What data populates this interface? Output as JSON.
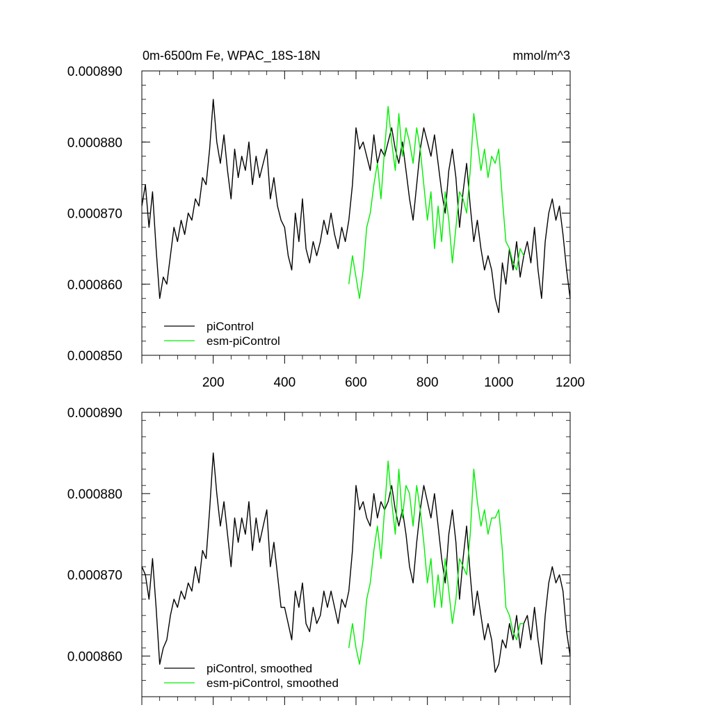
{
  "chart_data": [
    {
      "type": "line",
      "title": "0m-6500m Fe, WPAC_18S-18N",
      "units": "mmol/m^3",
      "xlim": [
        0,
        1200
      ],
      "ylim": [
        0.00085,
        0.00089
      ],
      "yticks": [
        0.00085,
        0.00086,
        0.00087,
        0.00088,
        0.00089
      ],
      "ytick_labels": [
        "0.000850",
        "0.000860",
        "0.000870",
        "0.000880",
        "0.000890"
      ],
      "xticks": [
        200,
        400,
        600,
        800,
        1000,
        1200
      ],
      "xtick_labels": [
        "200",
        "400",
        "600",
        "800",
        "1000",
        "1200"
      ],
      "legend_position": "bottom-left",
      "series": [
        {
          "name": "piControl",
          "color": "#000000",
          "x": [
            0,
            10,
            20,
            30,
            40,
            50,
            60,
            70,
            80,
            90,
            100,
            110,
            120,
            130,
            140,
            150,
            160,
            170,
            180,
            190,
            200,
            210,
            220,
            230,
            240,
            250,
            260,
            270,
            280,
            290,
            300,
            310,
            320,
            330,
            340,
            350,
            360,
            370,
            380,
            390,
            400,
            410,
            420,
            430,
            440,
            450,
            460,
            470,
            480,
            490,
            500,
            510,
            520,
            530,
            540,
            550,
            560,
            570,
            580,
            590,
            600,
            610,
            620,
            630,
            640,
            650,
            660,
            670,
            680,
            690,
            700,
            710,
            720,
            730,
            740,
            750,
            760,
            770,
            780,
            790,
            800,
            810,
            820,
            830,
            840,
            850,
            860,
            870,
            880,
            890,
            900,
            910,
            920,
            930,
            940,
            950,
            960,
            970,
            980,
            990,
            1000,
            1010,
            1020,
            1030,
            1040,
            1050,
            1060,
            1070,
            1080,
            1090,
            1100,
            1110,
            1120,
            1130,
            1140,
            1150,
            1160,
            1170,
            1180,
            1190,
            1200
          ],
          "values": [
            0.000871,
            0.000874,
            0.000868,
            0.000873,
            0.000865,
            0.000858,
            0.000861,
            0.00086,
            0.000864,
            0.000868,
            0.000866,
            0.000869,
            0.000867,
            0.00087,
            0.000869,
            0.000872,
            0.000871,
            0.000875,
            0.000874,
            0.000879,
            0.000886,
            0.00088,
            0.000877,
            0.000881,
            0.000876,
            0.000872,
            0.000879,
            0.000875,
            0.000878,
            0.000876,
            0.00088,
            0.000874,
            0.000878,
            0.000875,
            0.000877,
            0.000879,
            0.000872,
            0.000875,
            0.000871,
            0.000869,
            0.000868,
            0.000864,
            0.000862,
            0.00087,
            0.000866,
            0.000872,
            0.000865,
            0.000863,
            0.000866,
            0.000864,
            0.000866,
            0.000869,
            0.000867,
            0.00087,
            0.000867,
            0.000865,
            0.000868,
            0.000866,
            0.000869,
            0.000874,
            0.000882,
            0.000879,
            0.00088,
            0.000878,
            0.000876,
            0.000881,
            0.000877,
            0.000879,
            0.000878,
            0.00088,
            0.000882,
            0.000879,
            0.000877,
            0.00088,
            0.000876,
            0.000872,
            0.000869,
            0.000874,
            0.000879,
            0.000882,
            0.00088,
            0.000878,
            0.000881,
            0.000877,
            0.000873,
            0.00087,
            0.000876,
            0.000879,
            0.000875,
            0.000868,
            0.000873,
            0.000877,
            0.000871,
            0.000866,
            0.000869,
            0.000865,
            0.000862,
            0.000864,
            0.000862,
            0.000858,
            0.000856,
            0.000863,
            0.00086,
            0.000865,
            0.000862,
            0.000866,
            0.000861,
            0.000864,
            0.000866,
            0.000863,
            0.000868,
            0.000862,
            0.000858,
            0.000866,
            0.00087,
            0.000872,
            0.000869,
            0.000871,
            0.000867,
            0.000862,
            0.000858
          ]
        },
        {
          "name": "esm-piControl",
          "color": "#00ee00",
          "x": [
            580,
            590,
            600,
            610,
            620,
            630,
            640,
            650,
            660,
            670,
            680,
            690,
            700,
            710,
            720,
            730,
            740,
            750,
            760,
            770,
            780,
            790,
            800,
            810,
            820,
            830,
            840,
            850,
            860,
            870,
            880,
            890,
            900,
            910,
            920,
            930,
            940,
            950,
            960,
            970,
            980,
            990,
            1000,
            1010,
            1020,
            1030,
            1040,
            1050,
            1060,
            1070
          ],
          "values": [
            0.00086,
            0.000864,
            0.000861,
            0.000858,
            0.000862,
            0.000868,
            0.00087,
            0.000874,
            0.000877,
            0.000872,
            0.000879,
            0.000885,
            0.00088,
            0.000876,
            0.000884,
            0.000878,
            0.000882,
            0.00088,
            0.000877,
            0.000882,
            0.000879,
            0.000874,
            0.000869,
            0.000873,
            0.000865,
            0.000871,
            0.000866,
            0.000873,
            0.000869,
            0.000863,
            0.000868,
            0.000873,
            0.000872,
            0.00087,
            0.000876,
            0.000884,
            0.00088,
            0.000876,
            0.000879,
            0.000875,
            0.000878,
            0.000877,
            0.000879,
            0.000872,
            0.000866,
            0.000865,
            0.000863,
            0.000862,
            0.000865,
            0.000864
          ]
        }
      ]
    },
    {
      "type": "line",
      "xlim": [
        0,
        1200
      ],
      "ylim": [
        0.000855,
        0.00089
      ],
      "yticks": [
        0.00086,
        0.00087,
        0.00088,
        0.00089
      ],
      "ytick_labels": [
        "0.000860",
        "0.000870",
        "0.000880",
        "0.000890"
      ],
      "xticks": [
        200,
        400,
        600,
        800,
        1000,
        1200
      ],
      "legend_position": "bottom-left",
      "series": [
        {
          "name": "piControl, smoothed",
          "color": "#000000",
          "x": [
            0,
            10,
            20,
            30,
            40,
            50,
            60,
            70,
            80,
            90,
            100,
            110,
            120,
            130,
            140,
            150,
            160,
            170,
            180,
            190,
            200,
            210,
            220,
            230,
            240,
            250,
            260,
            270,
            280,
            290,
            300,
            310,
            320,
            330,
            340,
            350,
            360,
            370,
            380,
            390,
            400,
            410,
            420,
            430,
            440,
            450,
            460,
            470,
            480,
            490,
            500,
            510,
            520,
            530,
            540,
            550,
            560,
            570,
            580,
            590,
            600,
            610,
            620,
            630,
            640,
            650,
            660,
            670,
            680,
            690,
            700,
            710,
            720,
            730,
            740,
            750,
            760,
            770,
            780,
            790,
            800,
            810,
            820,
            830,
            840,
            850,
            860,
            870,
            880,
            890,
            900,
            910,
            920,
            930,
            940,
            950,
            960,
            970,
            980,
            990,
            1000,
            1010,
            1020,
            1030,
            1040,
            1050,
            1060,
            1070,
            1080,
            1090,
            1100,
            1110,
            1120,
            1130,
            1140,
            1150,
            1160,
            1170,
            1180,
            1190,
            1200
          ],
          "values": [
            0.000871,
            0.00087,
            0.000867,
            0.000872,
            0.000866,
            0.000859,
            0.000861,
            0.000862,
            0.000865,
            0.000867,
            0.000866,
            0.000868,
            0.000867,
            0.000869,
            0.000868,
            0.000871,
            0.000869,
            0.000873,
            0.000872,
            0.000878,
            0.000885,
            0.00088,
            0.000876,
            0.000879,
            0.000875,
            0.000871,
            0.000877,
            0.000874,
            0.000877,
            0.000875,
            0.000879,
            0.000873,
            0.000877,
            0.000874,
            0.000876,
            0.000878,
            0.000871,
            0.000874,
            0.00087,
            0.000866,
            0.000866,
            0.000864,
            0.000862,
            0.000868,
            0.000866,
            0.000869,
            0.000864,
            0.000863,
            0.000866,
            0.000864,
            0.000865,
            0.000868,
            0.000866,
            0.000868,
            0.000866,
            0.000864,
            0.000867,
            0.000866,
            0.000868,
            0.000873,
            0.000881,
            0.000878,
            0.000879,
            0.000877,
            0.000876,
            0.00088,
            0.000877,
            0.000879,
            0.000878,
            0.000879,
            0.000881,
            0.000878,
            0.000876,
            0.000878,
            0.000875,
            0.000871,
            0.000869,
            0.000874,
            0.000878,
            0.000881,
            0.000879,
            0.000877,
            0.00088,
            0.000876,
            0.000872,
            0.000869,
            0.000875,
            0.000878,
            0.000874,
            0.000867,
            0.000872,
            0.000876,
            0.00087,
            0.000865,
            0.000868,
            0.000865,
            0.000862,
            0.000864,
            0.000862,
            0.000858,
            0.000859,
            0.000862,
            0.000861,
            0.000864,
            0.000862,
            0.000865,
            0.000861,
            0.000864,
            0.000865,
            0.000862,
            0.000866,
            0.000862,
            0.000859,
            0.000865,
            0.000869,
            0.000871,
            0.000869,
            0.00087,
            0.000868,
            0.000863,
            0.00086
          ]
        },
        {
          "name": "esm-piControl, smoothed",
          "color": "#00ee00",
          "x": [
            580,
            590,
            600,
            610,
            620,
            630,
            640,
            650,
            660,
            670,
            680,
            690,
            700,
            710,
            720,
            730,
            740,
            750,
            760,
            770,
            780,
            790,
            800,
            810,
            820,
            830,
            840,
            850,
            860,
            870,
            880,
            890,
            900,
            910,
            920,
            930,
            940,
            950,
            960,
            970,
            980,
            990,
            1000,
            1010,
            1020,
            1030,
            1040,
            1050,
            1060,
            1070
          ],
          "values": [
            0.000861,
            0.000864,
            0.000861,
            0.000859,
            0.000862,
            0.000867,
            0.000869,
            0.000873,
            0.000876,
            0.000872,
            0.000878,
            0.000884,
            0.000879,
            0.000875,
            0.000883,
            0.000877,
            0.000881,
            0.00088,
            0.000876,
            0.000881,
            0.000878,
            0.000874,
            0.000869,
            0.000872,
            0.000866,
            0.00087,
            0.000866,
            0.000872,
            0.000868,
            0.000864,
            0.000867,
            0.000872,
            0.000871,
            0.00087,
            0.000875,
            0.000883,
            0.000879,
            0.000876,
            0.000878,
            0.000875,
            0.000877,
            0.000877,
            0.000878,
            0.000873,
            0.000866,
            0.000865,
            0.000863,
            0.000862,
            0.000864,
            0.000864
          ]
        }
      ]
    }
  ]
}
